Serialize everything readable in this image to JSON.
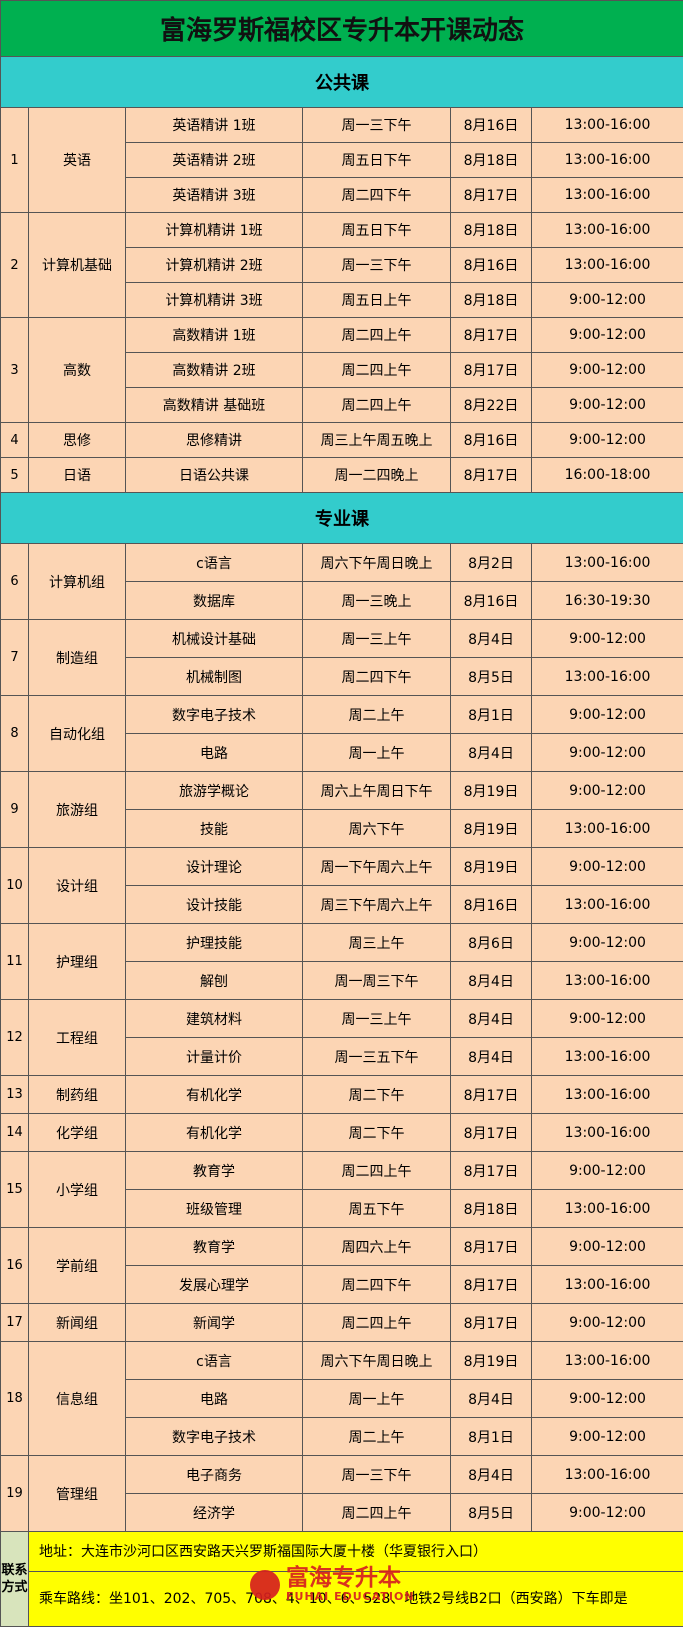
{
  "title": "富海罗斯福校区专升本开课动态",
  "sections": [
    {
      "title": "公共课",
      "groups": [
        {
          "no": 1,
          "name": "英语",
          "courses": [
            [
              "英语精讲 1班",
              "周一三下午",
              "8月16日",
              "13:00-16:00"
            ],
            [
              "英语精讲 2班",
              "周五日下午",
              "8月18日",
              "13:00-16:00"
            ],
            [
              "英语精讲 3班",
              "周二四下午",
              "8月17日",
              "13:00-16:00"
            ]
          ]
        },
        {
          "no": 2,
          "name": "计算机基础",
          "courses": [
            [
              "计算机精讲 1班",
              "周五日下午",
              "8月18日",
              "13:00-16:00"
            ],
            [
              "计算机精讲 2班",
              "周一三下午",
              "8月16日",
              "13:00-16:00"
            ],
            [
              "计算机精讲 3班",
              "周五日上午",
              "8月18日",
              "9:00-12:00"
            ]
          ]
        },
        {
          "no": 3,
          "name": "高数",
          "courses": [
            [
              "高数精讲 1班",
              "周二四上午",
              "8月17日",
              "9:00-12:00"
            ],
            [
              "高数精讲 2班",
              "周二四上午",
              "8月17日",
              "9:00-12:00"
            ],
            [
              "高数精讲 基础班",
              "周二四上午",
              "8月22日",
              "9:00-12:00"
            ]
          ]
        },
        {
          "no": 4,
          "name": "思修",
          "courses": [
            [
              "思修精讲",
              "周三上午周五晚上",
              "8月16日",
              "9:00-12:00"
            ]
          ]
        },
        {
          "no": 5,
          "name": "日语",
          "courses": [
            [
              "日语公共课",
              "周一二四晚上",
              "8月17日",
              "16:00-18:00"
            ]
          ]
        }
      ]
    },
    {
      "title": "专业课",
      "groups": [
        {
          "no": 6,
          "name": "计算机组",
          "courses": [
            [
              "c语言",
              "周六下午周日晚上",
              "8月2日",
              "13:00-16:00"
            ],
            [
              "数据库",
              "周一三晚上",
              "8月16日",
              "16:30-19:30"
            ]
          ]
        },
        {
          "no": 7,
          "name": "制造组",
          "courses": [
            [
              "机械设计基础",
              "周一三上午",
              "8月4日",
              "9:00-12:00"
            ],
            [
              "机械制图",
              "周二四下午",
              "8月5日",
              "13:00-16:00"
            ]
          ]
        },
        {
          "no": 8,
          "name": "自动化组",
          "courses": [
            [
              "数字电子技术",
              "周二上午",
              "8月1日",
              "9:00-12:00"
            ],
            [
              "电路",
              "周一上午",
              "8月4日",
              "9:00-12:00"
            ]
          ]
        },
        {
          "no": 9,
          "name": "旅游组",
          "courses": [
            [
              "旅游学概论",
              "周六上午周日下午",
              "8月19日",
              "9:00-12:00"
            ],
            [
              "技能",
              "周六下午",
              "8月19日",
              "13:00-16:00"
            ]
          ]
        },
        {
          "no": 10,
          "name": "设计组",
          "courses": [
            [
              "设计理论",
              "周一下午周六上午",
              "8月19日",
              "9:00-12:00"
            ],
            [
              "设计技能",
              "周三下午周六上午",
              "8月16日",
              "13:00-16:00"
            ]
          ]
        },
        {
          "no": 11,
          "name": "护理组",
          "courses": [
            [
              "护理技能",
              "周三上午",
              "8月6日",
              "9:00-12:00"
            ],
            [
              "解刨",
              "周一周三下午",
              "8月4日",
              "13:00-16:00"
            ]
          ]
        },
        {
          "no": 12,
          "name": "工程组",
          "courses": [
            [
              "建筑材料",
              "周一三上午",
              "8月4日",
              "9:00-12:00"
            ],
            [
              "计量计价",
              "周一三五下午",
              "8月4日",
              "13:00-16:00"
            ]
          ]
        },
        {
          "no": 13,
          "name": "制药组",
          "courses": [
            [
              "有机化学",
              "周二下午",
              "8月17日",
              "13:00-16:00"
            ]
          ]
        },
        {
          "no": 14,
          "name": "化学组",
          "courses": [
            [
              "有机化学",
              "周二下午",
              "8月17日",
              "13:00-16:00"
            ]
          ]
        },
        {
          "no": 15,
          "name": "小学组",
          "courses": [
            [
              "教育学",
              "周二四上午",
              "8月17日",
              "9:00-12:00"
            ],
            [
              "班级管理",
              "周五下午",
              "8月18日",
              "13:00-16:00"
            ]
          ]
        },
        {
          "no": 16,
          "name": "学前组",
          "courses": [
            [
              "教育学",
              "周四六上午",
              "8月17日",
              "9:00-12:00"
            ],
            [
              "发展心理学",
              "周二四下午",
              "8月17日",
              "13:00-16:00"
            ]
          ]
        },
        {
          "no": 17,
          "name": "新闻组",
          "courses": [
            [
              "新闻学",
              "周二四上午",
              "8月17日",
              "9:00-12:00"
            ]
          ]
        },
        {
          "no": 18,
          "name": "信息组",
          "courses": [
            [
              "c语言",
              "周六下午周日晚上",
              "8月19日",
              "13:00-16:00"
            ],
            [
              "电路",
              "周一上午",
              "8月4日",
              "9:00-12:00"
            ],
            [
              "数字电子技术",
              "周二上午",
              "8月1日",
              "9:00-12:00"
            ]
          ]
        },
        {
          "no": 19,
          "name": "管理组",
          "courses": [
            [
              "电子商务",
              "周一三下午",
              "8月4日",
              "13:00-16:00"
            ],
            [
              "经济学",
              "周二四上午",
              "8月5日",
              "9:00-12:00"
            ]
          ]
        }
      ]
    }
  ],
  "contact": {
    "label": "联系方式",
    "address": "地址：大连市沙河口区西安路天兴罗斯福国际大厦十楼（华夏银行入口）",
    "route": "乘车路线：坐101、202、705、708、4、10、6、528、地铁2号线B2口（西安路）下车即是"
  },
  "logo": {
    "name": "富海专升本",
    "subtitle": "FUHAI EDUCATION"
  }
}
